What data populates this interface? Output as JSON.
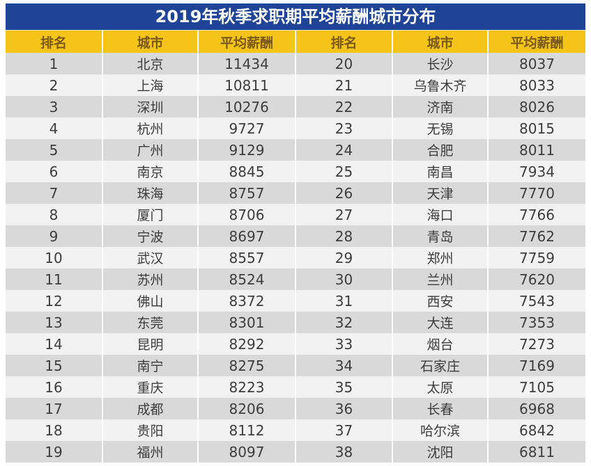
{
  "title": "2019年秋季求职期平均薪酬城市分布",
  "colors": {
    "title_bg": "#1f4397",
    "header_bg": "#f4c419",
    "row_dark": "#d9d9d9",
    "row_light": "#f2f2f2"
  },
  "headers": [
    "排名",
    "城市",
    "平均薪酬",
    "排名",
    "城市",
    "平均薪酬"
  ],
  "rows": [
    {
      "left": {
        "rank": "1",
        "city": "北京",
        "salary": "11434"
      },
      "right": {
        "rank": "20",
        "city": "长沙",
        "salary": "8037"
      }
    },
    {
      "left": {
        "rank": "2",
        "city": "上海",
        "salary": "10811"
      },
      "right": {
        "rank": "21",
        "city": "乌鲁木齐",
        "salary": "8033"
      }
    },
    {
      "left": {
        "rank": "3",
        "city": "深圳",
        "salary": "10276"
      },
      "right": {
        "rank": "22",
        "city": "济南",
        "salary": "8026"
      }
    },
    {
      "left": {
        "rank": "4",
        "city": "杭州",
        "salary": "9727"
      },
      "right": {
        "rank": "23",
        "city": "无锡",
        "salary": "8015"
      }
    },
    {
      "left": {
        "rank": "5",
        "city": "广州",
        "salary": "9129"
      },
      "right": {
        "rank": "24",
        "city": "合肥",
        "salary": "8011"
      }
    },
    {
      "left": {
        "rank": "6",
        "city": "南京",
        "salary": "8845"
      },
      "right": {
        "rank": "25",
        "city": "南昌",
        "salary": "7934"
      }
    },
    {
      "left": {
        "rank": "7",
        "city": "珠海",
        "salary": "8757"
      },
      "right": {
        "rank": "26",
        "city": "天津",
        "salary": "7770"
      }
    },
    {
      "left": {
        "rank": "8",
        "city": "厦门",
        "salary": "8706"
      },
      "right": {
        "rank": "27",
        "city": "海口",
        "salary": "7766"
      }
    },
    {
      "left": {
        "rank": "9",
        "city": "宁波",
        "salary": "8697"
      },
      "right": {
        "rank": "28",
        "city": "青岛",
        "salary": "7762"
      }
    },
    {
      "left": {
        "rank": "10",
        "city": "武汉",
        "salary": "8557"
      },
      "right": {
        "rank": "29",
        "city": "郑州",
        "salary": "7759"
      }
    },
    {
      "left": {
        "rank": "11",
        "city": "苏州",
        "salary": "8524"
      },
      "right": {
        "rank": "30",
        "city": "兰州",
        "salary": "7620"
      }
    },
    {
      "left": {
        "rank": "12",
        "city": "佛山",
        "salary": "8372"
      },
      "right": {
        "rank": "31",
        "city": "西安",
        "salary": "7543"
      }
    },
    {
      "left": {
        "rank": "13",
        "city": "东莞",
        "salary": "8301"
      },
      "right": {
        "rank": "32",
        "city": "大连",
        "salary": "7353"
      }
    },
    {
      "left": {
        "rank": "14",
        "city": "昆明",
        "salary": "8292"
      },
      "right": {
        "rank": "33",
        "city": "烟台",
        "salary": "7273"
      }
    },
    {
      "left": {
        "rank": "15",
        "city": "南宁",
        "salary": "8275"
      },
      "right": {
        "rank": "34",
        "city": "石家庄",
        "salary": "7169"
      }
    },
    {
      "left": {
        "rank": "16",
        "city": "重庆",
        "salary": "8223"
      },
      "right": {
        "rank": "35",
        "city": "太原",
        "salary": "7105"
      }
    },
    {
      "left": {
        "rank": "17",
        "city": "成都",
        "salary": "8206"
      },
      "right": {
        "rank": "36",
        "city": "长春",
        "salary": "6968"
      }
    },
    {
      "left": {
        "rank": "18",
        "city": "贵阳",
        "salary": "8112"
      },
      "right": {
        "rank": "37",
        "city": "哈尔滨",
        "salary": "6842"
      }
    },
    {
      "left": {
        "rank": "19",
        "city": "福州",
        "salary": "8097"
      },
      "right": {
        "rank": "38",
        "city": "沈阳",
        "salary": "6811"
      }
    }
  ]
}
